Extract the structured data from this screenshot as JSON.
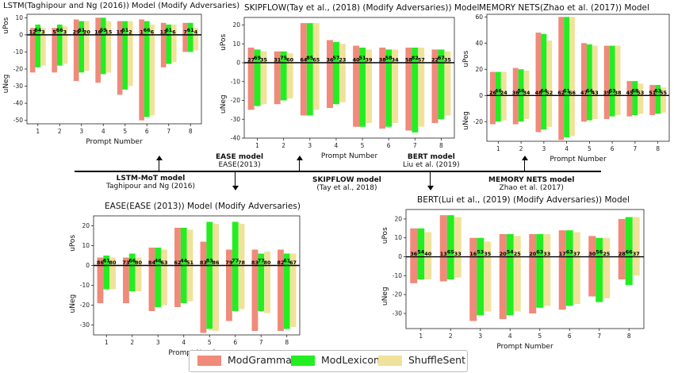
{
  "colors": {
    "ModGrammar": "#f08a7a",
    "ModLexicon": "#22ee22",
    "ShuffleSent": "#f0e29a"
  },
  "legend": [
    {
      "name": "ModGrammar",
      "color": "#f08a7a"
    },
    {
      "name": "ModLexicon",
      "color": "#22ee22"
    },
    {
      "name": "ShuffleSent",
      "color": "#f0e29a"
    }
  ],
  "connectors": {
    "lstm_mot": {
      "name": "LSTM-MoT model",
      "cite": "Taghipour and Ng (2016)"
    },
    "ease": {
      "name": "EASE model",
      "cite": "EASE(2013)"
    },
    "skipflow": {
      "name": "SKIPFLOW model",
      "cite": "(Tay et al., 2018)"
    },
    "bert": {
      "name": "BERT model",
      "cite": "Liu et al. (2019)"
    },
    "memory_nets": {
      "name": "MEMORY NETS model",
      "cite": "Zhao et al. (2017)"
    }
  },
  "chart_data": [
    {
      "id": "lstm",
      "type": "bar",
      "title": "LSTM(Taghipour and Ng (2016)) Model (Modify Adversaries)",
      "xlabel": "Prompt Number",
      "ylabel_top": "uPos",
      "ylabel_bottom": "uNeg",
      "ylim": [
        -52,
        12
      ],
      "yticks": [
        -50,
        -40,
        -30,
        -20,
        -10,
        0,
        10
      ],
      "categories": [
        "1",
        "2",
        "3",
        "4",
        "5",
        "6",
        "7",
        "8"
      ],
      "series": [
        {
          "name": "ModGrammar",
          "pos": [
            4,
            4,
            9,
            10,
            8,
            9,
            7,
            7
          ],
          "neg": [
            -22,
            -22,
            -27,
            -28,
            -35,
            -50,
            -19,
            -10
          ]
        },
        {
          "name": "ModLexicon",
          "pos": [
            6,
            6,
            8,
            10,
            8,
            8,
            6,
            7
          ],
          "neg": [
            -19,
            -18,
            -22,
            -23,
            -32,
            -48,
            -17,
            -10
          ]
        },
        {
          "name": "ShuffleSent",
          "pos": [
            4,
            5,
            8,
            8,
            8,
            6,
            6,
            4
          ],
          "neg": [
            -18,
            -17,
            -21,
            -22,
            -30,
            -47,
            -16,
            -9
          ]
        }
      ],
      "labels": [
        [
          "12",
          "64",
          "3"
        ],
        [
          "5",
          "66",
          "3"
        ],
        [
          "29",
          "61",
          "20"
        ],
        [
          "16",
          "59",
          "15"
        ],
        [
          "15",
          "61",
          "2"
        ],
        [
          "1",
          "66",
          "6"
        ],
        [
          "13",
          "61",
          "6"
        ],
        [
          "7",
          "61",
          "4"
        ]
      ]
    },
    {
      "id": "skipflow",
      "type": "bar",
      "title": "SKIPFLOW(Tay et al., (2018) (Modify Adversaries)) Model",
      "xlabel": "Prompt Number",
      "ylabel_top": "uPos",
      "ylabel_bottom": "uNeg",
      "ylim": [
        -40,
        24
      ],
      "yticks": [
        -40,
        -30,
        -20,
        -10,
        0,
        10,
        20
      ],
      "categories": [
        "1",
        "2",
        "3",
        "4",
        "5",
        "6",
        "7",
        "8"
      ],
      "series": [
        {
          "name": "ModGrammar",
          "pos": [
            8,
            6,
            21,
            12,
            9,
            8,
            8,
            7
          ],
          "neg": [
            -25,
            -22,
            -28,
            -24,
            -34,
            -35,
            -36,
            -32
          ]
        },
        {
          "name": "ModLexicon",
          "pos": [
            7,
            6,
            21,
            11,
            8,
            7,
            8,
            7
          ],
          "neg": [
            -23,
            -20,
            -28,
            -22,
            -34,
            -34,
            -37,
            -30
          ]
        },
        {
          "name": "ShuffleSent",
          "pos": [
            6,
            5,
            21,
            10,
            7,
            7,
            8,
            6
          ],
          "neg": [
            -22,
            -19,
            -25,
            -21,
            -32,
            -32,
            -34,
            -28
          ]
        }
      ],
      "labels": [
        [
          "27",
          "69",
          "35"
        ],
        [
          "31",
          "75",
          "60"
        ],
        [
          "64",
          "85",
          "65"
        ],
        [
          "36",
          "57",
          "23"
        ],
        [
          "40",
          "51",
          "39"
        ],
        [
          "38",
          "58",
          "34"
        ],
        [
          "58",
          "82",
          "57"
        ],
        [
          "22",
          "67",
          "35"
        ]
      ]
    },
    {
      "id": "memory",
      "type": "bar",
      "title": "MEMORY NETS(Zhao et al. (2017)) Model",
      "xlabel": "Prompt Number",
      "ylabel_top": "uPos",
      "ylabel_bottom": "uNeg",
      "ylim": [
        -35,
        62
      ],
      "yticks": [
        -20,
        0,
        20,
        40,
        60
      ],
      "categories": [
        "1",
        "2",
        "3",
        "4",
        "5",
        "6",
        "7",
        "8"
      ],
      "series": [
        {
          "name": "ModGrammar",
          "pos": [
            18,
            21,
            48,
            60,
            40,
            38,
            11,
            8
          ],
          "neg": [
            -22,
            -22,
            -28,
            -34,
            -20,
            -18,
            -16,
            -15
          ]
        },
        {
          "name": "ModLexicon",
          "pos": [
            18,
            20,
            47,
            60,
            39,
            38,
            11,
            8
          ],
          "neg": [
            -20,
            -20,
            -26,
            -32,
            -19,
            -16,
            -15,
            -14
          ]
        },
        {
          "name": "ShuffleSent",
          "pos": [
            18,
            19,
            42,
            60,
            38,
            38,
            9,
            6
          ],
          "neg": [
            -19,
            -18,
            -24,
            -31,
            -18,
            -15,
            -14,
            -13
          ]
        }
      ],
      "labels": [
        [
          "26",
          "46",
          "24"
        ],
        [
          "36",
          "56",
          "34"
        ],
        [
          "48",
          "64",
          "52"
        ],
        [
          "62",
          "61",
          "66"
        ],
        [
          "47",
          "64",
          "43"
        ],
        [
          "39",
          "63",
          "38"
        ],
        [
          "45",
          "68",
          "53"
        ],
        [
          "51",
          "63",
          "55"
        ]
      ]
    },
    {
      "id": "ease",
      "type": "bar",
      "title": "EASE(EASE (2013)) Model (Modify Adversaries)",
      "xlabel": "Prompt Number",
      "ylabel_top": "uPos",
      "ylabel_bottom": "uNeg",
      "ylim": [
        -35,
        25
      ],
      "yticks": [
        -30,
        -20,
        -10,
        0,
        10,
        20
      ],
      "categories": [
        "1",
        "2",
        "3",
        "4",
        "5",
        "6",
        "7",
        "8"
      ],
      "series": [
        {
          "name": "ModGrammar",
          "pos": [
            4,
            4,
            9,
            19,
            12,
            8,
            8,
            8
          ],
          "neg": [
            -19,
            -19,
            -23,
            -21,
            -34,
            -28,
            -33,
            -33
          ]
        },
        {
          "name": "ModLexicon",
          "pos": [
            5,
            6,
            9,
            19,
            22,
            22,
            6,
            6
          ],
          "neg": [
            -12,
            -13,
            -21,
            -19,
            -32,
            -23,
            -23,
            -32
          ]
        },
        {
          "name": "ShuffleSent",
          "pos": [
            4,
            4,
            8,
            18,
            21,
            21,
            7,
            6
          ],
          "neg": [
            -12,
            -13,
            -20,
            -18,
            -33,
            -22,
            -24,
            -31
          ]
        }
      ],
      "labels": [
        [
          "86",
          "61",
          "80"
        ],
        [
          "73",
          "66",
          "80"
        ],
        [
          "84",
          "46",
          "63"
        ],
        [
          "62",
          "44",
          "51"
        ],
        [
          "83",
          "83",
          "86"
        ],
        [
          "79",
          "77",
          "78"
        ],
        [
          "83",
          "77",
          "80"
        ],
        [
          "82",
          "61",
          "67"
        ]
      ]
    },
    {
      "id": "bert",
      "type": "bar",
      "title": "BERT(Lui et al., (2019) (Modify Adversaries)) Model",
      "xlabel": "Prompt Number",
      "ylabel_top": "uPos",
      "ylabel_bottom": "uNeg",
      "ylim": [
        -38,
        25
      ],
      "yticks": [
        -30,
        -20,
        -10,
        0,
        10,
        20
      ],
      "categories": [
        "1",
        "2",
        "3",
        "4",
        "5",
        "6",
        "7",
        "8"
      ],
      "series": [
        {
          "name": "ModGrammar",
          "pos": [
            15,
            22,
            10,
            12,
            12,
            14,
            11,
            20
          ],
          "neg": [
            -14,
            -13,
            -34,
            -33,
            -30,
            -28,
            -21,
            -12
          ]
        },
        {
          "name": "ModLexicon",
          "pos": [
            15,
            22,
            10,
            12,
            12,
            14,
            10,
            21
          ],
          "neg": [
            -12,
            -12,
            -31,
            -31,
            -27,
            -26,
            -24,
            -15
          ]
        },
        {
          "name": "ShuffleSent",
          "pos": [
            13,
            21,
            8,
            11,
            12,
            13,
            10,
            21
          ],
          "neg": [
            -12,
            -11,
            -29,
            -29,
            -26,
            -25,
            -22,
            -10
          ]
        }
      ],
      "labels": [
        [
          "36",
          "54",
          "40"
        ],
        [
          "13",
          "65",
          "33"
        ],
        [
          "16",
          "53",
          "35"
        ],
        [
          "20",
          "54",
          "25"
        ],
        [
          "20",
          "63",
          "33"
        ],
        [
          "17",
          "63",
          "37"
        ],
        [
          "30",
          "56",
          "25"
        ],
        [
          "28",
          "66",
          "37"
        ]
      ]
    }
  ]
}
